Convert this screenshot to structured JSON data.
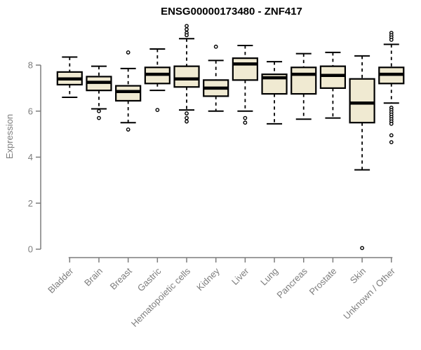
{
  "chart_data": {
    "type": "boxplot",
    "title": "ENSG00000173480 - ZNF417",
    "ylabel": "Expression",
    "xlabel": "",
    "ylim": [
      0,
      8
    ],
    "y_ticks": [
      0,
      2,
      4,
      6,
      8
    ],
    "grid": false,
    "legend_position": "none",
    "categories": [
      "Bladder",
      "Brain",
      "Breast",
      "Gastric",
      "Hematopoietic cells",
      "Kidney",
      "Liver",
      "Lung",
      "Pancreas",
      "Prostate",
      "Skin",
      "Unknown / Other"
    ],
    "series": [
      {
        "category": "Bladder",
        "whisker_low": 6.6,
        "q1": 7.15,
        "median": 7.4,
        "q3": 7.7,
        "whisker_high": 8.35,
        "outliers": []
      },
      {
        "category": "Brain",
        "whisker_low": 6.1,
        "q1": 6.9,
        "median": 7.25,
        "q3": 7.5,
        "whisker_high": 7.95,
        "outliers": [
          6.0,
          5.7
        ]
      },
      {
        "category": "Breast",
        "whisker_low": 5.5,
        "q1": 6.45,
        "median": 6.85,
        "q3": 7.1,
        "whisker_high": 7.85,
        "outliers": [
          8.55,
          5.2
        ]
      },
      {
        "category": "Gastric",
        "whisker_low": 6.9,
        "q1": 7.2,
        "median": 7.6,
        "q3": 7.9,
        "whisker_high": 8.7,
        "outliers": [
          6.05
        ]
      },
      {
        "category": "Hematopoietic cells",
        "whisker_low": 6.05,
        "q1": 7.05,
        "median": 7.4,
        "q3": 7.95,
        "whisker_high": 9.15,
        "outliers": [
          9.7,
          9.55,
          9.4,
          9.3,
          5.9,
          5.7,
          5.55
        ]
      },
      {
        "category": "Kidney",
        "whisker_low": 6.0,
        "q1": 6.65,
        "median": 7.0,
        "q3": 7.35,
        "whisker_high": 8.2,
        "outliers": [
          8.8
        ]
      },
      {
        "category": "Liver",
        "whisker_low": 6.0,
        "q1": 7.35,
        "median": 8.05,
        "q3": 8.3,
        "whisker_high": 8.85,
        "outliers": [
          5.7,
          5.5
        ]
      },
      {
        "category": "Lung",
        "whisker_low": 5.45,
        "q1": 6.75,
        "median": 7.45,
        "q3": 7.6,
        "whisker_high": 8.15,
        "outliers": []
      },
      {
        "category": "Pancreas",
        "whisker_low": 5.65,
        "q1": 6.75,
        "median": 7.6,
        "q3": 7.9,
        "whisker_high": 8.5,
        "outliers": []
      },
      {
        "category": "Prostate",
        "whisker_low": 5.7,
        "q1": 7.0,
        "median": 7.55,
        "q3": 7.95,
        "whisker_high": 8.55,
        "outliers": []
      },
      {
        "category": "Skin",
        "whisker_low": 3.45,
        "q1": 5.5,
        "median": 6.35,
        "q3": 7.4,
        "whisker_high": 8.4,
        "outliers": [
          0.05
        ]
      },
      {
        "category": "Unknown / Other",
        "whisker_low": 6.35,
        "q1": 7.2,
        "median": 7.6,
        "q3": 7.9,
        "whisker_high": 8.9,
        "outliers": [
          9.4,
          9.3,
          9.2,
          9.1,
          6.15,
          6.05,
          5.95,
          5.85,
          5.75,
          5.65,
          5.55,
          5.45,
          4.95,
          4.65
        ]
      }
    ],
    "colors": {
      "box_fill": "#f0ead2",
      "box_border": "#000000",
      "median": "#000000",
      "whisker": "#000000",
      "outlier": "#000000",
      "axis": "#7d7d7d",
      "tick_label": "#7d7d7d",
      "title": "#000000",
      "background": "#ffffff"
    }
  }
}
